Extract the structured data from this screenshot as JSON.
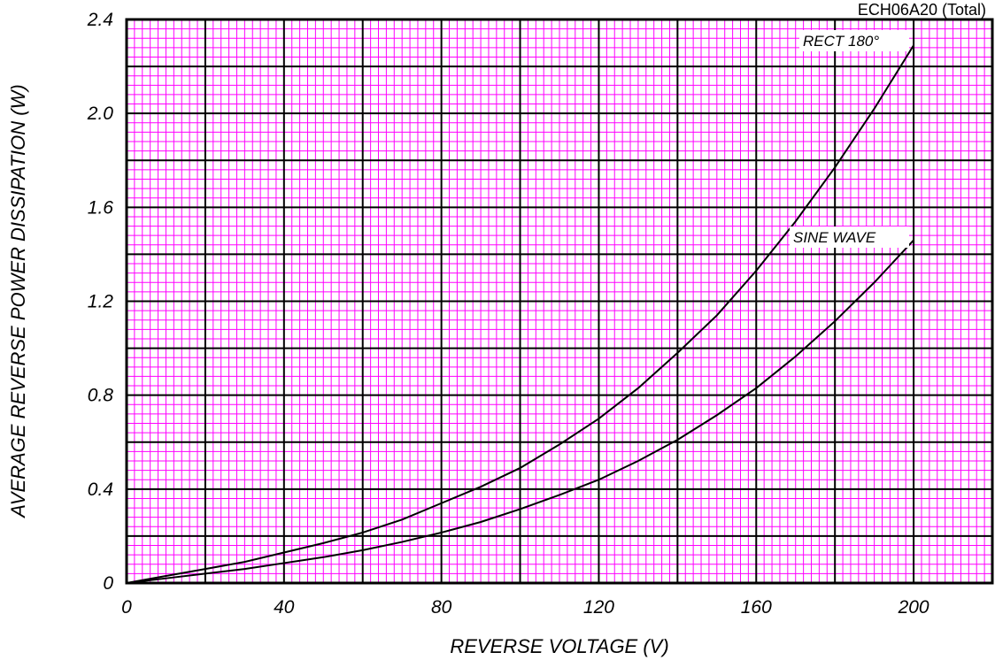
{
  "chart_data": {
    "type": "line",
    "part_number": "ECH06A20 (Total)",
    "xlabel": "REVERSE VOLTAGE (V)",
    "ylabel": "AVERAGE REVERSE POWER DISSIPATION (W)",
    "xlim": [
      0,
      220
    ],
    "ylim": [
      0,
      2.4
    ],
    "x_ticks": [
      0,
      40,
      80,
      120,
      160,
      200
    ],
    "x_tick_labels": [
      "0",
      "40",
      "80",
      "120",
      "160",
      "200"
    ],
    "y_ticks": [
      0,
      0.4,
      0.8,
      1.2,
      1.6,
      2.0,
      2.4
    ],
    "y_tick_labels": [
      "0",
      "0.4",
      "0.8",
      "1.2",
      "1.6",
      "2.0",
      "2.4"
    ],
    "grid": true,
    "series": [
      {
        "name": "RECT 180°",
        "x": [
          0,
          10,
          20,
          30,
          40,
          50,
          60,
          70,
          80,
          90,
          100,
          110,
          120,
          130,
          140,
          150,
          160,
          170,
          180,
          190,
          200
        ],
        "values": [
          0,
          0.03,
          0.06,
          0.09,
          0.13,
          0.17,
          0.215,
          0.27,
          0.34,
          0.41,
          0.49,
          0.59,
          0.7,
          0.83,
          0.98,
          1.14,
          1.33,
          1.54,
          1.77,
          2.02,
          2.29
        ]
      },
      {
        "name": "SINE WAVE",
        "x": [
          0,
          10,
          20,
          30,
          40,
          50,
          60,
          70,
          80,
          90,
          100,
          110,
          120,
          130,
          140,
          150,
          160,
          170,
          180,
          190,
          200
        ],
        "values": [
          0,
          0.02,
          0.04,
          0.06,
          0.085,
          0.11,
          0.14,
          0.175,
          0.215,
          0.26,
          0.315,
          0.375,
          0.44,
          0.52,
          0.61,
          0.715,
          0.83,
          0.965,
          1.115,
          1.28,
          1.46
        ]
      }
    ]
  },
  "colors": {
    "minor_grid": "#ff00ff",
    "major_grid": "#000000",
    "curve": "#000000"
  }
}
